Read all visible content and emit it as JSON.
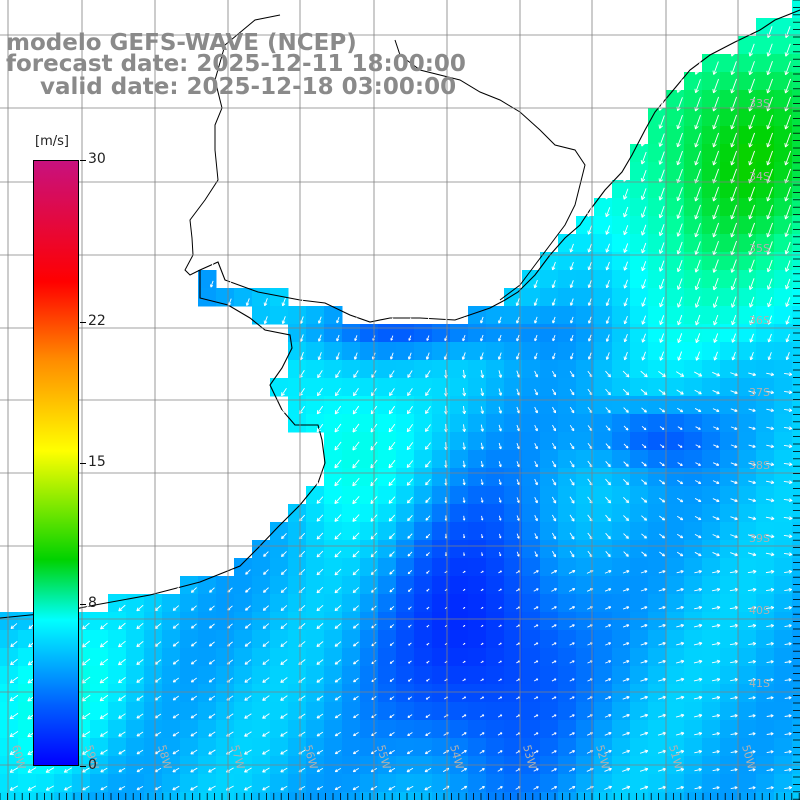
{
  "title": {
    "line1": "modelo GEFS-WAVE (NCEP)",
    "line2": "forecast date: 2025-12-11 18:00:00",
    "line3": "valid date: 2025-12-18 03:00:00"
  },
  "colorbar": {
    "unit": "[m/s]",
    "ticks": [
      "30",
      "22",
      "15",
      "8",
      "0"
    ],
    "range": [
      0,
      30
    ]
  },
  "map": {
    "lat_labels": [
      "33S",
      "34S",
      "35S",
      "36S",
      "37S",
      "38S",
      "39S",
      "40S",
      "41S"
    ],
    "lon_labels": [
      "60W",
      "59W",
      "58W",
      "57W",
      "56W",
      "55W",
      "54W",
      "53W",
      "52W",
      "51W",
      "50W"
    ],
    "land_color": "#ffffff",
    "arrow_color": "#ffffff",
    "grid_color": "#808080"
  }
}
